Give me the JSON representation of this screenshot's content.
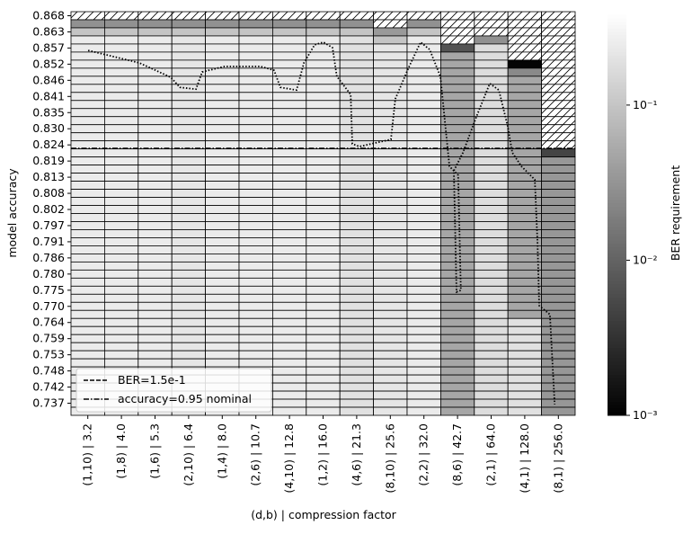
{
  "chart_data": {
    "type": "heatmap",
    "x_label": "(d,b) | compression factor",
    "y_label": "model accuracy",
    "colorbar_label": "BER requirement",
    "x_categories": [
      "(1,10) | 3.2",
      "(1,8) | 4.0",
      "(1,6) | 5.3",
      "(2,10) | 6.4",
      "(1,4) | 8.0",
      "(2,6) | 10.7",
      "(4,10) | 12.8",
      "(1,2) | 16.0",
      "(4,6) | 21.3",
      "(8,10) | 25.6",
      "(2,2) | 32.0",
      "(8,6) | 42.7",
      "(2,1) | 64.0",
      "(4,1) | 128.0",
      "(8,1) | 256.0"
    ],
    "y_categories": [
      "0.868",
      null,
      "0.863",
      null,
      "0.857",
      null,
      "0.852",
      null,
      "0.846",
      null,
      "0.841",
      null,
      "0.835",
      null,
      "0.830",
      null,
      "0.824",
      null,
      "0.819",
      null,
      "0.813",
      null,
      "0.808",
      null,
      "0.802",
      null,
      "0.797",
      null,
      "0.791",
      null,
      "0.786",
      null,
      "0.780",
      null,
      "0.775",
      null,
      "0.770",
      null,
      "0.764",
      null,
      "0.759",
      null,
      "0.753",
      null,
      "0.748",
      null,
      "0.742",
      null,
      "0.737",
      null
    ],
    "ylim": [
      0.7329,
      0.8694
    ],
    "clim": [
      0.001,
      0.4
    ],
    "log_color": true,
    "cticks": [
      {
        "value": 0.001,
        "label": "10⁻³"
      },
      {
        "value": 0.01,
        "label": "10⁻²"
      },
      {
        "value": 0.1,
        "label": "10⁻¹"
      }
    ],
    "values": [
      [
        null,
        null,
        null,
        null,
        null,
        null,
        null,
        null,
        null,
        null,
        null,
        null,
        null,
        null,
        null
      ],
      [
        0.03,
        0.03,
        0.03,
        0.03,
        0.03,
        0.03,
        0.03,
        0.03,
        0.03,
        null,
        0.03,
        null,
        null,
        null,
        null
      ],
      [
        0.1,
        0.1,
        0.1,
        0.1,
        0.1,
        0.1,
        0.1,
        0.1,
        0.1,
        0.036,
        0.1,
        null,
        null,
        null,
        null
      ],
      [
        0.25,
        0.25,
        0.25,
        0.22,
        0.25,
        0.25,
        0.25,
        0.25,
        0.2,
        0.1,
        0.25,
        null,
        0.03,
        null,
        null
      ],
      [
        0.25,
        0.25,
        0.25,
        0.22,
        0.25,
        0.25,
        0.25,
        0.25,
        0.2,
        0.22,
        0.25,
        0.0072,
        0.18,
        null,
        null
      ],
      [
        0.25,
        0.25,
        0.25,
        0.22,
        0.25,
        0.25,
        0.25,
        0.25,
        0.2,
        0.22,
        0.25,
        0.05,
        0.18,
        null,
        null
      ],
      [
        0.25,
        0.25,
        0.25,
        0.22,
        0.25,
        0.25,
        0.25,
        0.25,
        0.2,
        0.22,
        0.25,
        0.05,
        0.18,
        0.0011,
        null
      ],
      [
        0.25,
        0.25,
        0.25,
        0.22,
        0.25,
        0.25,
        0.25,
        0.25,
        0.2,
        0.22,
        0.25,
        0.05,
        0.18,
        0.025,
        null
      ],
      [
        0.25,
        0.25,
        0.25,
        0.22,
        0.25,
        0.25,
        0.25,
        0.25,
        0.2,
        0.22,
        0.25,
        0.05,
        0.18,
        0.05,
        null
      ],
      [
        0.25,
        0.25,
        0.25,
        0.22,
        0.25,
        0.25,
        0.25,
        0.25,
        0.2,
        0.22,
        0.25,
        0.05,
        0.18,
        0.05,
        null
      ],
      [
        0.25,
        0.25,
        0.25,
        0.22,
        0.25,
        0.25,
        0.25,
        0.25,
        0.2,
        0.22,
        0.25,
        0.05,
        0.18,
        0.05,
        null
      ],
      [
        0.25,
        0.25,
        0.25,
        0.22,
        0.25,
        0.25,
        0.25,
        0.25,
        0.2,
        0.22,
        0.25,
        0.05,
        0.18,
        0.05,
        null
      ],
      [
        0.25,
        0.25,
        0.25,
        0.22,
        0.25,
        0.25,
        0.25,
        0.25,
        0.2,
        0.22,
        0.25,
        0.05,
        0.18,
        0.05,
        null
      ],
      [
        0.25,
        0.25,
        0.25,
        0.22,
        0.25,
        0.25,
        0.25,
        0.25,
        0.2,
        0.22,
        0.25,
        0.05,
        0.18,
        0.05,
        null
      ],
      [
        0.25,
        0.25,
        0.25,
        0.22,
        0.25,
        0.25,
        0.25,
        0.25,
        0.2,
        0.22,
        0.25,
        0.05,
        0.18,
        0.05,
        null
      ],
      [
        0.25,
        0.25,
        0.25,
        0.22,
        0.25,
        0.25,
        0.25,
        0.25,
        0.2,
        0.22,
        0.25,
        0.05,
        0.18,
        0.05,
        null
      ],
      [
        0.25,
        0.25,
        0.25,
        0.22,
        0.25,
        0.25,
        0.25,
        0.25,
        0.2,
        0.22,
        0.25,
        0.05,
        0.18,
        0.05,
        null
      ],
      [
        0.25,
        0.25,
        0.25,
        0.22,
        0.25,
        0.25,
        0.25,
        0.25,
        0.2,
        0.22,
        0.25,
        0.05,
        0.18,
        0.05,
        0.005
      ],
      [
        0.25,
        0.25,
        0.25,
        0.22,
        0.25,
        0.25,
        0.25,
        0.25,
        0.2,
        0.22,
        0.25,
        0.05,
        0.18,
        0.05,
        0.035
      ],
      [
        0.25,
        0.25,
        0.25,
        0.22,
        0.25,
        0.25,
        0.25,
        0.25,
        0.2,
        0.22,
        0.25,
        0.05,
        0.18,
        0.05,
        0.035
      ],
      [
        0.25,
        0.25,
        0.25,
        0.22,
        0.25,
        0.25,
        0.25,
        0.25,
        0.2,
        0.22,
        0.25,
        0.05,
        0.18,
        0.05,
        0.035
      ],
      [
        0.25,
        0.25,
        0.25,
        0.22,
        0.25,
        0.25,
        0.25,
        0.25,
        0.2,
        0.22,
        0.25,
        0.05,
        0.18,
        0.05,
        0.035
      ],
      [
        0.25,
        0.25,
        0.25,
        0.22,
        0.25,
        0.25,
        0.25,
        0.25,
        0.2,
        0.22,
        0.25,
        0.05,
        0.18,
        0.05,
        0.035
      ],
      [
        0.25,
        0.25,
        0.25,
        0.22,
        0.25,
        0.25,
        0.25,
        0.25,
        0.2,
        0.22,
        0.25,
        0.05,
        0.18,
        0.05,
        0.035
      ],
      [
        0.25,
        0.25,
        0.25,
        0.22,
        0.25,
        0.25,
        0.25,
        0.25,
        0.2,
        0.22,
        0.25,
        0.05,
        0.18,
        0.05,
        0.035
      ],
      [
        0.25,
        0.25,
        0.25,
        0.22,
        0.25,
        0.25,
        0.25,
        0.25,
        0.2,
        0.22,
        0.25,
        0.05,
        0.18,
        0.05,
        0.035
      ],
      [
        0.25,
        0.25,
        0.25,
        0.22,
        0.25,
        0.25,
        0.25,
        0.25,
        0.2,
        0.22,
        0.25,
        0.05,
        0.18,
        0.05,
        0.035
      ],
      [
        0.25,
        0.25,
        0.25,
        0.22,
        0.25,
        0.25,
        0.25,
        0.25,
        0.2,
        0.22,
        0.25,
        0.05,
        0.18,
        0.05,
        0.035
      ],
      [
        0.25,
        0.25,
        0.25,
        0.22,
        0.25,
        0.25,
        0.25,
        0.25,
        0.2,
        0.22,
        0.25,
        0.05,
        0.18,
        0.05,
        0.035
      ],
      [
        0.25,
        0.25,
        0.25,
        0.22,
        0.25,
        0.25,
        0.25,
        0.25,
        0.2,
        0.22,
        0.25,
        0.05,
        0.18,
        0.05,
        0.035
      ],
      [
        0.25,
        0.25,
        0.25,
        0.22,
        0.25,
        0.25,
        0.25,
        0.25,
        0.2,
        0.22,
        0.25,
        0.05,
        0.18,
        0.05,
        0.035
      ],
      [
        0.25,
        0.25,
        0.25,
        0.22,
        0.25,
        0.25,
        0.25,
        0.25,
        0.2,
        0.22,
        0.25,
        0.05,
        0.18,
        0.05,
        0.035
      ],
      [
        0.25,
        0.25,
        0.25,
        0.22,
        0.25,
        0.25,
        0.25,
        0.25,
        0.2,
        0.22,
        0.25,
        0.05,
        0.18,
        0.05,
        0.035
      ],
      [
        0.25,
        0.25,
        0.25,
        0.22,
        0.25,
        0.25,
        0.25,
        0.25,
        0.2,
        0.22,
        0.25,
        0.05,
        0.18,
        0.05,
        0.035
      ],
      [
        0.25,
        0.25,
        0.25,
        0.22,
        0.25,
        0.25,
        0.25,
        0.25,
        0.2,
        0.22,
        0.25,
        0.05,
        0.18,
        0.05,
        0.035
      ],
      [
        0.25,
        0.25,
        0.25,
        0.22,
        0.25,
        0.25,
        0.25,
        0.25,
        0.2,
        0.22,
        0.25,
        0.05,
        0.18,
        0.05,
        0.035
      ],
      [
        0.25,
        0.25,
        0.25,
        0.22,
        0.25,
        0.25,
        0.25,
        0.25,
        0.2,
        0.22,
        0.25,
        0.05,
        0.18,
        0.05,
        0.035
      ],
      [
        0.25,
        0.25,
        0.25,
        0.22,
        0.25,
        0.25,
        0.25,
        0.25,
        0.2,
        0.22,
        0.25,
        0.05,
        0.18,
        0.05,
        0.035
      ],
      [
        0.25,
        0.25,
        0.25,
        0.22,
        0.25,
        0.25,
        0.25,
        0.25,
        0.2,
        0.22,
        0.25,
        0.05,
        0.18,
        0.2,
        0.035
      ],
      [
        0.25,
        0.25,
        0.25,
        0.22,
        0.25,
        0.25,
        0.25,
        0.25,
        0.2,
        0.22,
        0.25,
        0.05,
        0.18,
        0.2,
        0.035
      ],
      [
        0.25,
        0.25,
        0.25,
        0.22,
        0.25,
        0.25,
        0.25,
        0.25,
        0.2,
        0.22,
        0.25,
        0.05,
        0.18,
        0.2,
        0.035
      ],
      [
        0.25,
        0.25,
        0.25,
        0.22,
        0.25,
        0.25,
        0.25,
        0.25,
        0.2,
        0.22,
        0.25,
        0.05,
        0.18,
        0.2,
        0.035
      ],
      [
        0.25,
        0.25,
        0.25,
        0.22,
        0.25,
        0.25,
        0.25,
        0.25,
        0.2,
        0.22,
        0.25,
        0.05,
        0.18,
        0.2,
        0.035
      ],
      [
        0.25,
        0.25,
        0.25,
        0.22,
        0.25,
        0.25,
        0.25,
        0.25,
        0.2,
        0.22,
        0.25,
        0.05,
        0.18,
        0.2,
        0.035
      ],
      [
        0.25,
        0.25,
        0.25,
        0.22,
        0.25,
        0.25,
        0.25,
        0.25,
        0.2,
        0.22,
        0.25,
        0.05,
        0.18,
        0.2,
        0.035
      ],
      [
        0.25,
        0.25,
        0.25,
        0.22,
        0.25,
        0.25,
        0.25,
        0.25,
        0.2,
        0.22,
        0.25,
        0.05,
        0.18,
        0.2,
        0.035
      ],
      [
        0.25,
        0.25,
        0.25,
        0.22,
        0.25,
        0.25,
        0.25,
        0.25,
        0.2,
        0.22,
        0.25,
        0.05,
        0.18,
        0.2,
        0.035
      ],
      [
        0.25,
        0.25,
        0.25,
        0.22,
        0.25,
        0.25,
        0.25,
        0.25,
        0.2,
        0.22,
        0.25,
        0.05,
        0.18,
        0.2,
        0.035
      ],
      [
        0.25,
        0.25,
        0.25,
        0.22,
        0.25,
        0.25,
        0.25,
        0.25,
        0.2,
        0.22,
        0.25,
        0.05,
        0.18,
        0.2,
        0.035
      ],
      [
        0.25,
        0.25,
        0.25,
        0.22,
        0.25,
        0.25,
        0.25,
        0.25,
        0.2,
        0.22,
        0.25,
        0.05,
        0.18,
        0.2,
        0.035
      ]
    ],
    "contour": {
      "name": "BER=1.5e-1",
      "color": "#000000",
      "x": [
        0.51,
        2.03,
        2.97,
        3.24,
        3.72,
        3.9,
        4.57,
        5.64,
        6.04,
        6.23,
        6.71,
        6.93,
        7.25,
        7.51,
        7.78,
        7.91,
        8.32,
        8.37,
        8.58,
        9.52,
        9.65,
        10.05,
        10.4,
        10.67,
        10.99,
        11.26,
        11.52,
        11.6,
        11.47,
        11.39,
        11.66,
        12.06,
        12.46,
        12.73,
        12.99,
        13.13,
        13.4,
        13.8,
        13.88,
        13.93,
        14.25,
        14.39
      ],
      "y": [
        0.8563,
        0.8521,
        0.8472,
        0.8438,
        0.8432,
        0.849,
        0.8509,
        0.8509,
        0.8496,
        0.8438,
        0.8429,
        0.8521,
        0.8582,
        0.8591,
        0.8572,
        0.8475,
        0.8414,
        0.8247,
        0.8238,
        0.8262,
        0.8399,
        0.8506,
        0.8591,
        0.8566,
        0.8475,
        0.8171,
        0.8141,
        0.7752,
        0.7746,
        0.8156,
        0.8217,
        0.8338,
        0.8451,
        0.8429,
        0.8308,
        0.8217,
        0.8171,
        0.8126,
        0.7913,
        0.77,
        0.767,
        0.7366
      ]
    },
    "nominal": {
      "name": "accuracy=0.95 nominal",
      "value": 0.8232,
      "color": "#000000"
    },
    "legend": "lower left"
  }
}
